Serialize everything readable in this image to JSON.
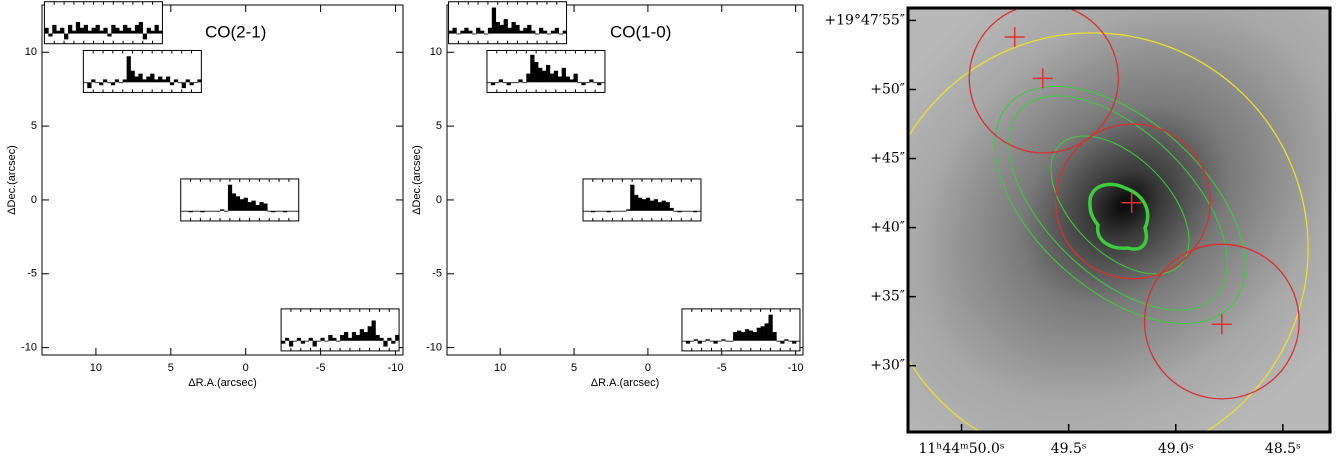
{
  "chart_data": [
    {
      "type": "spectra-map",
      "title": "CO(2-1)",
      "x_label": "ΔR.A.(arcsec)",
      "y_label": "ΔDec.(arcsec)",
      "xlim": [
        13.6,
        -10.5
      ],
      "ylim": [
        -10.5,
        13.2
      ],
      "xticks": [
        10,
        5,
        0,
        -5,
        -10
      ],
      "yticks": [
        -10,
        -5,
        0,
        5,
        10
      ],
      "inset_ylim": [
        -0.35,
        1.1
      ],
      "insets": [
        {
          "x": 9.5,
          "y": 12,
          "values": [
            0.2,
            -0.1,
            0.3,
            0.1,
            0.2,
            -0.2,
            0.3,
            0.1,
            0.4,
            0.2,
            0.3,
            0.1,
            0.2,
            0.3,
            0.1,
            0.2,
            -0.1,
            0.3,
            0.2,
            0.1,
            0.3,
            0.2,
            0.1,
            0.3,
            0.4,
            -0.2,
            0.2,
            0.1,
            0.3,
            0.1
          ]
        },
        {
          "x": 6.9,
          "y": 8.7,
          "values": [
            0.0,
            -0.2,
            0.1,
            0.0,
            -0.1,
            0.1,
            0.0,
            -0.1,
            0.1,
            0.0,
            0.1,
            0.9,
            0.4,
            0.2,
            0.3,
            0.1,
            0.2,
            0.3,
            0.1,
            0.2,
            0.1,
            0.2,
            -0.1,
            0.1,
            0.0,
            -0.2,
            0.1,
            -0.1,
            0.0,
            0.1
          ]
        },
        {
          "x": 0.4,
          "y": 0,
          "values": [
            0,
            0,
            -0.05,
            0,
            0,
            -0.05,
            0,
            0,
            0,
            0,
            0.05,
            0,
            0.9,
            0.6,
            0.5,
            0.4,
            0.45,
            0.3,
            0.35,
            0.2,
            0.3,
            0.25,
            0,
            -0.05,
            0,
            0,
            -0.05,
            0,
            0,
            0
          ]
        },
        {
          "x": -6.3,
          "y": -8.8,
          "values": [
            -0.1,
            0.1,
            -0.2,
            0,
            0.1,
            -0.1,
            0,
            0.1,
            -0.2,
            0,
            0.1,
            0,
            0.2,
            0.1,
            0,
            0.2,
            0.3,
            0.1,
            0.3,
            0.2,
            0.4,
            0.3,
            0.5,
            0.7,
            0.2,
            0.1,
            -0.2,
            0.1,
            -0.1,
            0.2
          ]
        }
      ]
    },
    {
      "type": "spectra-map",
      "title": "CO(1-0)",
      "x_label": "ΔR.A.(arcsec)",
      "y_label": "ΔDec.(arcsec)",
      "xlim": [
        13.6,
        -10.5
      ],
      "ylim": [
        -10.5,
        13.2
      ],
      "xticks": [
        10,
        5,
        0,
        -5,
        -10
      ],
      "yticks": [
        -10,
        -5,
        0,
        5,
        10
      ],
      "inset_ylim": [
        -0.35,
        1.1
      ],
      "insets": [
        {
          "x": 9.5,
          "y": 12,
          "values": [
            0.1,
            0.2,
            0,
            0.1,
            0.2,
            0.1,
            0,
            0.2,
            0.1,
            0,
            0.2,
            0.9,
            0.4,
            0.3,
            0.5,
            0.2,
            0.4,
            0.3,
            0.1,
            0.2,
            0.3,
            0.1,
            0,
            0.2,
            0.1,
            0,
            0.1,
            0.2,
            0,
            0.1
          ]
        },
        {
          "x": 6.9,
          "y": 8.7,
          "values": [
            0,
            -0.1,
            0,
            0.1,
            0,
            -0.1,
            0,
            0,
            0.1,
            0,
            0.3,
            0.95,
            0.7,
            0.5,
            0.4,
            0.6,
            0.3,
            0.4,
            0.2,
            0.5,
            0.2,
            0.1,
            0.3,
            0,
            -0.1,
            0,
            0.1,
            0,
            -0.1,
            0
          ]
        },
        {
          "x": 0.4,
          "y": 0,
          "values": [
            0,
            0,
            -0.05,
            0,
            0,
            0,
            -0.05,
            0,
            0,
            0,
            0,
            0.05,
            0.9,
            0.55,
            0.45,
            0.4,
            0.45,
            0.35,
            0.4,
            0.3,
            0.35,
            0.3,
            0.1,
            0,
            -0.05,
            0,
            0,
            0,
            -0.05,
            0
          ]
        },
        {
          "x": -6.3,
          "y": -8.8,
          "values": [
            0,
            -0.1,
            0,
            0.05,
            -0.1,
            0,
            0.05,
            0,
            -0.1,
            0,
            0.05,
            0,
            0,
            0.3,
            0.35,
            0.3,
            0.4,
            0.35,
            0.3,
            0.45,
            0.5,
            0.6,
            0.9,
            0.3,
            0,
            -0.1,
            0.05,
            0,
            -0.1,
            0
          ]
        }
      ]
    },
    {
      "type": "image",
      "xlim": [
        50.25,
        48.28
      ],
      "ylim": [
        25.2,
        55.9
      ],
      "xticks": [
        {
          "value": 50.0,
          "label": "11ʰ44ᵐ50.0ˢ"
        },
        {
          "value": 49.5,
          "label": "49.5ˢ"
        },
        {
          "value": 49.0,
          "label": "49.0ˢ"
        },
        {
          "value": 48.5,
          "label": "48.5ˢ"
        }
      ],
      "yticks": [
        {
          "value": 55,
          "label": "+19°47′55″"
        },
        {
          "value": 50,
          "label": "+50″"
        },
        {
          "value": 45,
          "label": "+45″"
        },
        {
          "value": 40,
          "label": "+40″"
        },
        {
          "value": 35,
          "label": "+35″"
        },
        {
          "value": 30,
          "label": "+30″"
        }
      ],
      "crosses": {
        "color": "#e03030",
        "x": [
          49.752,
          49.621,
          49.206,
          48.785
        ],
        "y": [
          53.8,
          50.8,
          41.8,
          33.0
        ]
      },
      "circles": [
        {
          "color": "#e8e030",
          "x": 49.388,
          "y": 38.5,
          "r": 15.6
        },
        {
          "color": "#d83030",
          "x": 49.616,
          "y": 50.8,
          "r": 5.4
        },
        {
          "color": "#d83030",
          "x": 49.2,
          "y": 41.9,
          "r": 5.6
        },
        {
          "color": "#d83030",
          "x": 48.785,
          "y": 33.2,
          "r": 5.6
        }
      ]
    }
  ]
}
